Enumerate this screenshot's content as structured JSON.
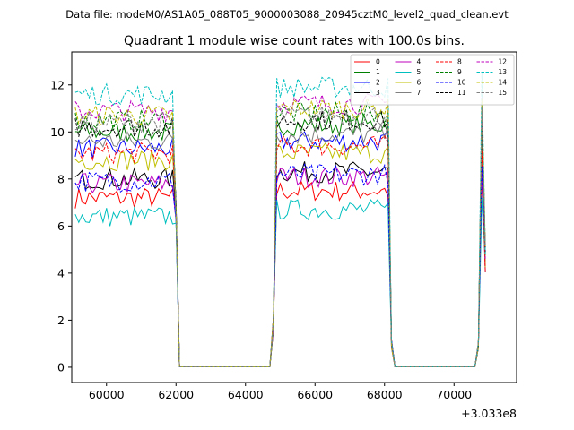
{
  "header": {
    "data_file": "Data file: modeM0/AS1A05_088T05_9000003088_20945cztM0_level2_quad_clean.evt"
  },
  "chart_data": {
    "type": "line",
    "title": "Quadrant 1 module wise count rates with 100.0s bins.",
    "xlabel": "",
    "ylabel": "",
    "offset_label": "+3.033e8",
    "xlim": [
      59000,
      71800
    ],
    "ylim": [
      -0.65,
      13.4
    ],
    "xticks": [
      60000,
      62000,
      64000,
      66000,
      68000,
      70000
    ],
    "yticks": [
      0,
      2,
      4,
      6,
      8,
      10,
      12
    ],
    "grid": false,
    "legend": {
      "placement": "top-right",
      "columns": 4
    },
    "segments": [
      [
        59100,
        61900
      ],
      [
        64900,
        68100
      ],
      [
        70800,
        70900
      ]
    ],
    "series": [
      {
        "name": "0",
        "color": "#ff0000",
        "dash": false,
        "level": 7.2
      },
      {
        "name": "1",
        "color": "#008000",
        "dash": false,
        "level": 10.0
      },
      {
        "name": "2",
        "color": "#0000ff",
        "dash": false,
        "level": 9.3
      },
      {
        "name": "3",
        "color": "#000000",
        "dash": false,
        "level": 8.0
      },
      {
        "name": "4",
        "color": "#bf00bf",
        "dash": false,
        "level": 7.8
      },
      {
        "name": "5",
        "color": "#00bfbf",
        "dash": false,
        "level": 6.4
      },
      {
        "name": "6",
        "color": "#bfbf00",
        "dash": false,
        "level": 8.8
      },
      {
        "name": "7",
        "color": "#808080",
        "dash": false,
        "level": 9.6
      },
      {
        "name": "8",
        "color": "#ff0000",
        "dash": true,
        "level": 9.1
      },
      {
        "name": "9",
        "color": "#008000",
        "dash": true,
        "level": 10.5
      },
      {
        "name": "10",
        "color": "#0000ff",
        "dash": true,
        "level": 7.9
      },
      {
        "name": "11",
        "color": "#000000",
        "dash": true,
        "level": 10.2
      },
      {
        "name": "12",
        "color": "#bf00bf",
        "dash": true,
        "level": 10.9
      },
      {
        "name": "13",
        "color": "#00bfbf",
        "dash": true,
        "level": 11.6
      },
      {
        "name": "14",
        "color": "#bfbf00",
        "dash": true,
        "level": 10.7
      },
      {
        "name": "15",
        "color": "#808080",
        "dash": true,
        "level": 10.4
      }
    ]
  }
}
